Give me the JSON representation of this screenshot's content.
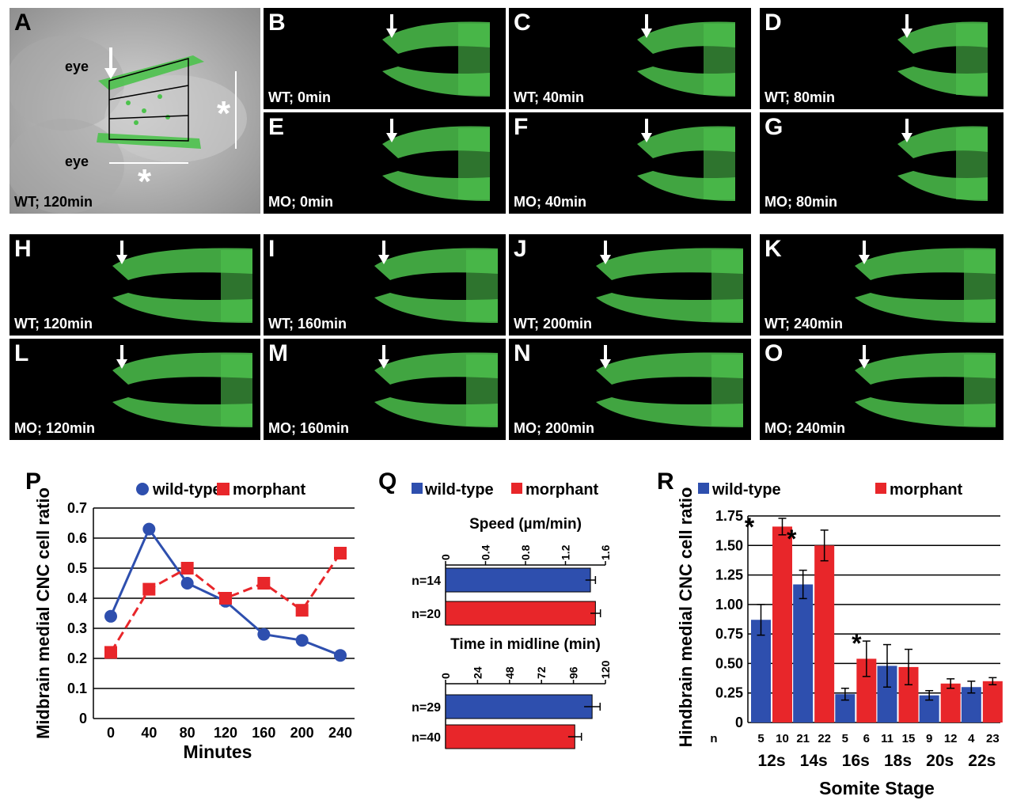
{
  "panels": [
    {
      "letter": "A",
      "caption": "WT; 120min"
    },
    {
      "letter": "B",
      "caption": "WT; 0min"
    },
    {
      "letter": "C",
      "caption": "WT; 40min"
    },
    {
      "letter": "D",
      "caption": "WT; 80min"
    },
    {
      "letter": "E",
      "caption": "MO; 0min"
    },
    {
      "letter": "F",
      "caption": "MO; 40min"
    },
    {
      "letter": "G",
      "caption": "MO; 80min"
    },
    {
      "letter": "H",
      "caption": "WT; 120min"
    },
    {
      "letter": "I",
      "caption": "WT; 160min"
    },
    {
      "letter": "J",
      "caption": "WT; 200min"
    },
    {
      "letter": "K",
      "caption": "WT; 240min"
    },
    {
      "letter": "L",
      "caption": "MO; 120min"
    },
    {
      "letter": "M",
      "caption": "MO; 160min"
    },
    {
      "letter": "N",
      "caption": "MO; 200min"
    },
    {
      "letter": "O",
      "caption": "MO; 240min"
    }
  ],
  "panelA": {
    "eye_top": "eye",
    "eye_bottom": "eye",
    "asterisk": "*"
  },
  "colors": {
    "wildtype": "#2e4fae",
    "morphant": "#e8262a",
    "cells": "#4cc24c"
  },
  "chart_data": [
    {
      "letter": "P",
      "type": "line",
      "xlabel": "Minutes",
      "ylabel": "Midbrain medial CNC cell ratio",
      "x": [
        0,
        40,
        80,
        120,
        160,
        200,
        240
      ],
      "ylim": [
        0,
        0.7
      ],
      "yticks": [
        "0",
        "0.1",
        "0.2",
        "0.3",
        "0.4",
        "0.5",
        "0.6",
        "0.7"
      ],
      "grid": true,
      "legend": "top",
      "series": [
        {
          "name": "wild-type",
          "values": [
            0.34,
            0.63,
            0.45,
            0.39,
            0.28,
            0.26,
            0.21
          ]
        },
        {
          "name": "morphant",
          "values": [
            0.22,
            0.43,
            0.5,
            0.4,
            0.45,
            0.36,
            0.55
          ]
        }
      ]
    },
    {
      "letter": "Q",
      "type": "bar",
      "legend": "top",
      "legend_names": [
        "wild-type",
        "morphant"
      ],
      "subcharts": [
        {
          "title": "Speed (µm/min)",
          "xlim": [
            0,
            1.6
          ],
          "ticks": [
            "0",
            "0.4",
            "0.8",
            "1.2",
            "1.6"
          ],
          "categories": [
            "n=14",
            "n=20"
          ],
          "values": [
            1.45,
            1.5
          ],
          "errors": [
            0.05,
            0.05
          ]
        },
        {
          "title": "Time in midline (min)",
          "xlim": [
            0,
            120
          ],
          "ticks": [
            "0",
            "24",
            "48",
            "72",
            "96",
            "120"
          ],
          "categories": [
            "n=29",
            "n=40"
          ],
          "values": [
            110,
            97
          ],
          "errors": [
            6,
            5
          ]
        }
      ]
    },
    {
      "letter": "R",
      "type": "bar",
      "xlabel": "Somite Stage",
      "ylabel": "Hindbrain medial CNC cell ratio",
      "ylim": [
        0,
        1.75
      ],
      "yticks": [
        "0",
        "0.25",
        "0.50",
        "0.75",
        "1.00",
        "1.25",
        "1.50",
        "1.75"
      ],
      "categories": [
        "12s",
        "14s",
        "16s",
        "18s",
        "20s",
        "22s"
      ],
      "n_label": "n",
      "n_counts": [
        [
          "5",
          "10"
        ],
        [
          "21",
          "22"
        ],
        [
          "5",
          "6"
        ],
        [
          "11",
          "15"
        ],
        [
          "9",
          "12"
        ],
        [
          "4",
          "23"
        ]
      ],
      "significance": [
        "*",
        "*",
        "*",
        "",
        "",
        ""
      ],
      "legend": "top",
      "series": [
        {
          "name": "wild-type",
          "values": [
            0.87,
            1.17,
            0.24,
            0.48,
            0.23,
            0.3
          ],
          "errors": [
            0.13,
            0.12,
            0.05,
            0.18,
            0.04,
            0.05
          ]
        },
        {
          "name": "morphant",
          "values": [
            1.66,
            1.5,
            0.54,
            0.47,
            0.33,
            0.35
          ],
          "errors": [
            0.07,
            0.13,
            0.15,
            0.15,
            0.04,
            0.03
          ]
        }
      ]
    }
  ]
}
